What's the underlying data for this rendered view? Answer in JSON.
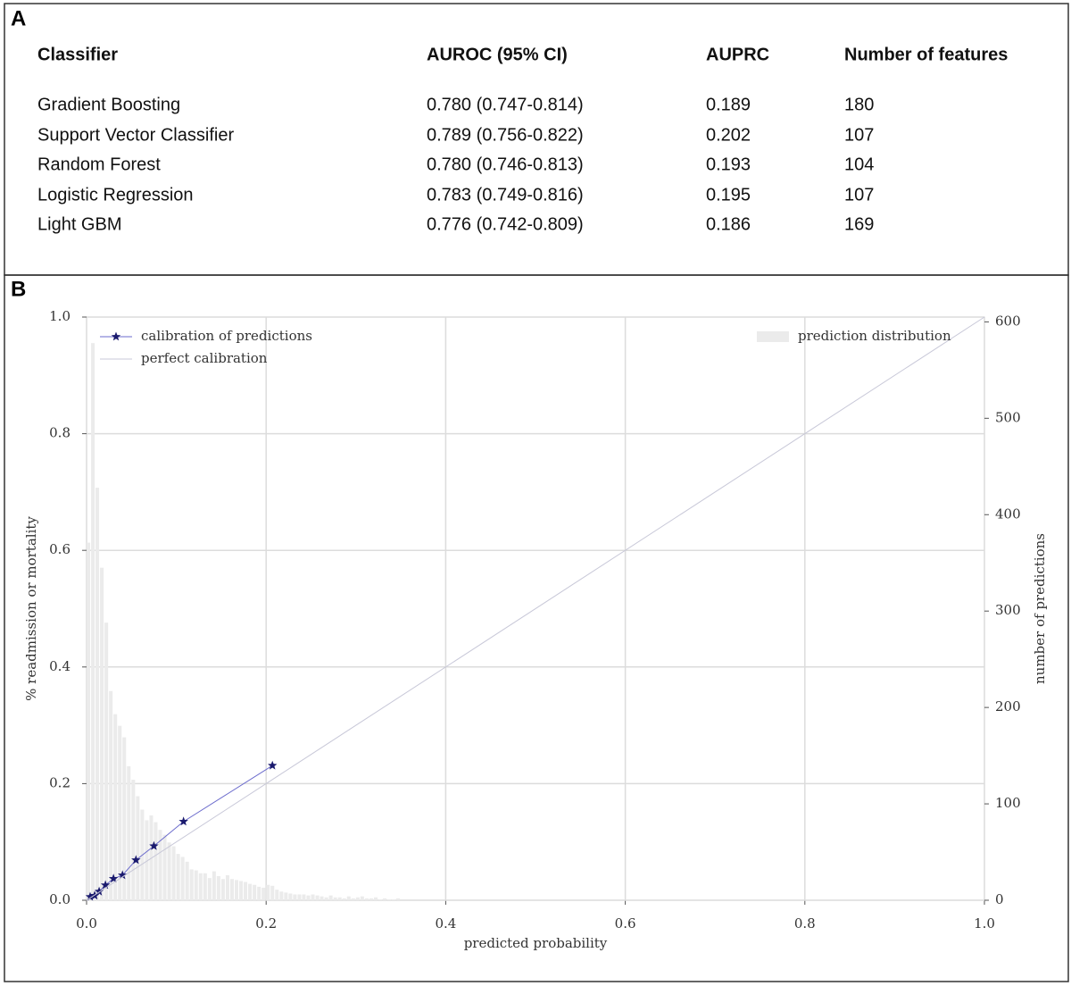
{
  "panel_a": {
    "label": "A",
    "table": {
      "header": [
        "Classifier",
        "AUROC (95% CI)",
        "AUPRC",
        "Number of features"
      ],
      "rows": [
        [
          "Gradient Boosting",
          "0.780 (0.747-0.814)",
          "0.189",
          "180"
        ],
        [
          "Support Vector Classifier",
          "0.789 (0.756-0.822)",
          "0.202",
          "107"
        ],
        [
          "Random Forest",
          "0.780 (0.746-0.813)",
          "0.193",
          "104"
        ],
        [
          "Logistic Regression",
          "0.783 (0.749-0.816)",
          "0.195",
          "107"
        ],
        [
          "Light GBM",
          "0.776 (0.742-0.809)",
          "0.186",
          "169"
        ]
      ]
    }
  },
  "chart_data": {
    "type": "combo",
    "label": "B",
    "xlabel": "predicted probability",
    "ylabel": "% readmission or mortality",
    "y2label": "number of predictions",
    "xlim": [
      0,
      1
    ],
    "ylim": [
      0,
      1
    ],
    "y2lim": [
      0,
      605
    ],
    "xticks": [
      {
        "value": 0,
        "label": "0.0"
      },
      0.2,
      0.4,
      0.6,
      0.8,
      {
        "value": 1,
        "label": "1.0"
      }
    ],
    "yticks": [
      {
        "value": 0,
        "label": "0.0"
      },
      0.2,
      0.4,
      0.6,
      0.8,
      {
        "value": 1,
        "label": "1.0"
      }
    ],
    "y2ticks": [
      0,
      100,
      200,
      300,
      400,
      500,
      600
    ],
    "grid": true,
    "legend": "upper left",
    "legend2": "upper right",
    "series": [
      {
        "name": "calibration of predictions",
        "type": "line",
        "marker": "star",
        "color": "#6b6bcc",
        "marker_color": "#1a1a6e",
        "x": [
          0.004,
          0.009,
          0.014,
          0.021,
          0.03,
          0.04,
          0.055,
          0.075,
          0.108,
          0.207
        ],
        "values": [
          0.006,
          0.008,
          0.015,
          0.026,
          0.037,
          0.043,
          0.069,
          0.093,
          0.135,
          0.231
        ]
      },
      {
        "name": "perfect calibration",
        "type": "line",
        "color": "#c8c8d8",
        "x": [
          0,
          1
        ],
        "values": [
          0,
          1
        ]
      },
      {
        "name": "prediction distribution",
        "type": "bar",
        "axis": "y2",
        "color": "#ebebeb",
        "bins": [
          0,
          0.005,
          0.01,
          0.015,
          0.02,
          0.025,
          0.03,
          0.035,
          0.04,
          0.045,
          0.05,
          0.055,
          0.06,
          0.065,
          0.07,
          0.075,
          0.08,
          0.085,
          0.09,
          0.095,
          0.1,
          0.105,
          0.11,
          0.115,
          0.12,
          0.125,
          0.13,
          0.135,
          0.14,
          0.145,
          0.15,
          0.155,
          0.16,
          0.165,
          0.17,
          0.175,
          0.18,
          0.185,
          0.19,
          0.195,
          0.2,
          0.205,
          0.21,
          0.215,
          0.22,
          0.225,
          0.23,
          0.235,
          0.24,
          0.245,
          0.25,
          0.255,
          0.26,
          0.265,
          0.27,
          0.275,
          0.28,
          0.285,
          0.29,
          0.295,
          0.3,
          0.305,
          0.31,
          0.315,
          0.32,
          0.325,
          0.33,
          0.335,
          0.34,
          0.345,
          0.35
        ],
        "values": [
          371,
          578,
          428,
          345,
          288,
          217,
          193,
          181,
          169,
          139,
          125,
          108,
          94,
          83,
          88,
          81,
          73,
          68,
          60,
          56,
          48,
          45,
          40,
          32,
          31,
          28,
          28,
          23,
          30,
          25,
          22,
          26,
          22,
          21,
          20,
          19,
          17,
          16,
          14,
          13,
          16,
          15,
          11,
          9,
          8,
          7,
          6,
          6,
          6,
          5,
          6,
          5,
          4,
          3,
          5,
          3,
          3,
          2,
          4,
          2,
          3,
          4,
          2,
          2,
          3,
          1,
          2,
          1,
          1,
          2
        ]
      }
    ]
  }
}
